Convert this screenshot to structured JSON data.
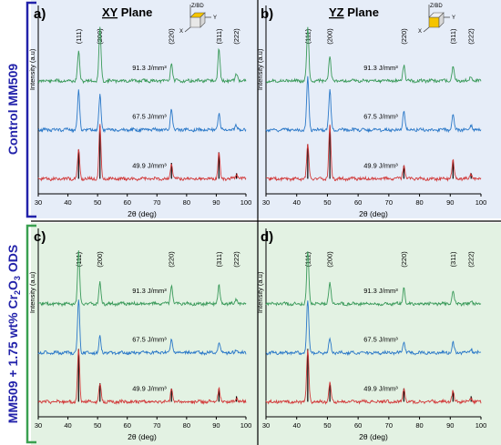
{
  "colors": {
    "control_bg": "#e6edf8",
    "ods_bg": "#e3f2e3",
    "control_bracket": "#2222aa",
    "ods_bracket": "#3aa050",
    "series_91": "#3a9a5a",
    "series_67": "#2a78c8",
    "series_49": "#d23a3a",
    "reference_lines": "#000000",
    "cube": "#f5c400"
  },
  "row_labels": {
    "control": "Control MM509",
    "ods_prefix": "MM509 + 1.75 wt% Cr",
    "ods_sub1": "2",
    "ods_mid": "O",
    "ods_sub2": "3",
    "ods_suffix": " ODS"
  },
  "cube_axes": {
    "z": "Z/BD",
    "x": "X",
    "y": "Y"
  },
  "chart_data": [
    {
      "panel": "a)",
      "type": "line",
      "title": "XY Plane",
      "title_underlined": "XY",
      "title_rest": " Plane",
      "xlabel": "2θ (deg)",
      "ylabel": "Intensity (a.u)",
      "xlim": [
        30,
        100
      ],
      "xticks": [
        30,
        40,
        50,
        60,
        70,
        80,
        90,
        100
      ],
      "peak_labels": [
        {
          "label": "(111)",
          "x": 43.6
        },
        {
          "label": "(200)",
          "x": 50.8
        },
        {
          "label": "(220)",
          "x": 74.9
        },
        {
          "label": "(311)",
          "x": 90.9
        },
        {
          "label": "(222)",
          "x": 96.8
        }
      ],
      "reference_peaks": [
        43.6,
        50.8,
        74.9,
        90.9,
        96.8
      ],
      "series": [
        {
          "name": "91.3 J/mm³",
          "peaks": [
            [
              43.6,
              0.55
            ],
            [
              50.8,
              1.0
            ],
            [
              74.9,
              0.35
            ],
            [
              90.9,
              0.6
            ],
            [
              96.8,
              0.15
            ]
          ]
        },
        {
          "name": "67.5 J/mm³",
          "peaks": [
            [
              43.6,
              0.75
            ],
            [
              50.8,
              0.65
            ],
            [
              74.9,
              0.4
            ],
            [
              90.9,
              0.3
            ],
            [
              96.8,
              0.1
            ]
          ]
        },
        {
          "name": "49.9 J/mm³",
          "peaks": [
            [
              43.6,
              0.55
            ],
            [
              50.8,
              1.0
            ],
            [
              74.9,
              0.3
            ],
            [
              90.9,
              0.5
            ],
            [
              96.8,
              0.1
            ]
          ]
        }
      ]
    },
    {
      "panel": "b)",
      "type": "line",
      "title": "YZ Plane",
      "title_underlined": "YZ",
      "title_rest": " Plane",
      "xlabel": "2θ (deg)",
      "ylabel": "Intensity (a.u)",
      "xlim": [
        30,
        100
      ],
      "xticks": [
        30,
        40,
        50,
        60,
        70,
        80,
        90,
        100
      ],
      "peak_labels": [
        {
          "label": "(111)",
          "x": 43.6
        },
        {
          "label": "(200)",
          "x": 50.8
        },
        {
          "label": "(220)",
          "x": 74.9
        },
        {
          "label": "(311)",
          "x": 90.9
        },
        {
          "label": "(222)",
          "x": 96.8
        }
      ],
      "reference_peaks": [
        43.6,
        50.8,
        74.9,
        90.9,
        96.8
      ],
      "series": [
        {
          "name": "91.3 J/mm³",
          "peaks": [
            [
              43.6,
              1.0
            ],
            [
              50.8,
              0.45
            ],
            [
              74.9,
              0.3
            ],
            [
              90.9,
              0.25
            ],
            [
              96.8,
              0.1
            ]
          ]
        },
        {
          "name": "67.5 J/mm³",
          "peaks": [
            [
              43.6,
              1.0
            ],
            [
              50.8,
              0.75
            ],
            [
              74.9,
              0.35
            ],
            [
              90.9,
              0.3
            ],
            [
              96.8,
              0.1
            ]
          ]
        },
        {
          "name": "49.9 J/mm³",
          "peaks": [
            [
              43.6,
              0.65
            ],
            [
              50.8,
              1.0
            ],
            [
              74.9,
              0.25
            ],
            [
              90.9,
              0.35
            ],
            [
              96.8,
              0.1
            ]
          ]
        }
      ]
    },
    {
      "panel": "c)",
      "type": "line",
      "title": "",
      "xlabel": "2θ (deg)",
      "ylabel": "Intensity (a.u)",
      "xlim": [
        30,
        100
      ],
      "xticks": [
        30,
        40,
        50,
        60,
        70,
        80,
        90,
        100
      ],
      "peak_labels": [
        {
          "label": "(111)",
          "x": 43.6
        },
        {
          "label": "(200)",
          "x": 50.8
        },
        {
          "label": "(220)",
          "x": 74.9
        },
        {
          "label": "(311)",
          "x": 90.9
        },
        {
          "label": "(222)",
          "x": 96.8
        }
      ],
      "reference_peaks": [
        43.6,
        50.8,
        74.9,
        90.9,
        96.8
      ],
      "series": [
        {
          "name": "91.3 J/mm³",
          "peaks": [
            [
              43.6,
              1.0
            ],
            [
              50.8,
              0.4
            ],
            [
              74.9,
              0.35
            ],
            [
              90.9,
              0.35
            ],
            [
              96.8,
              0.1
            ]
          ]
        },
        {
          "name": "67.5 J/mm³",
          "peaks": [
            [
              43.6,
              1.0
            ],
            [
              50.8,
              0.3
            ],
            [
              74.9,
              0.25
            ],
            [
              90.9,
              0.2
            ],
            [
              96.8,
              0.08
            ]
          ]
        },
        {
          "name": "49.9 J/mm³",
          "peaks": [
            [
              43.6,
              1.0
            ],
            [
              50.8,
              0.35
            ],
            [
              74.9,
              0.25
            ],
            [
              90.9,
              0.25
            ],
            [
              96.8,
              0.08
            ]
          ]
        }
      ]
    },
    {
      "panel": "d)",
      "type": "line",
      "title": "",
      "xlabel": "2θ (deg)",
      "ylabel": "Intensity (a.u)",
      "xlim": [
        30,
        100
      ],
      "xticks": [
        30,
        40,
        50,
        60,
        70,
        80,
        90,
        100
      ],
      "peak_labels": [
        {
          "label": "(111)",
          "x": 43.6
        },
        {
          "label": "(200)",
          "x": 50.8
        },
        {
          "label": "(220)",
          "x": 74.9
        },
        {
          "label": "(311)",
          "x": 90.9
        },
        {
          "label": "(222)",
          "x": 96.8
        }
      ],
      "reference_peaks": [
        43.6,
        50.8,
        74.9,
        90.9,
        96.8
      ],
      "series": [
        {
          "name": "91.3 J/mm³",
          "peaks": [
            [
              43.6,
              1.0
            ],
            [
              50.8,
              0.4
            ],
            [
              74.9,
              0.3
            ],
            [
              90.9,
              0.25
            ],
            [
              96.8,
              0.08
            ]
          ]
        },
        {
          "name": "67.5 J/mm³",
          "peaks": [
            [
              43.6,
              1.0
            ],
            [
              50.8,
              0.25
            ],
            [
              74.9,
              0.2
            ],
            [
              90.9,
              0.2
            ],
            [
              96.8,
              0.08
            ]
          ]
        },
        {
          "name": "49.9 J/mm³",
          "peaks": [
            [
              43.6,
              1.0
            ],
            [
              50.8,
              0.35
            ],
            [
              74.9,
              0.25
            ],
            [
              90.9,
              0.2
            ],
            [
              96.8,
              0.08
            ]
          ]
        }
      ]
    }
  ]
}
